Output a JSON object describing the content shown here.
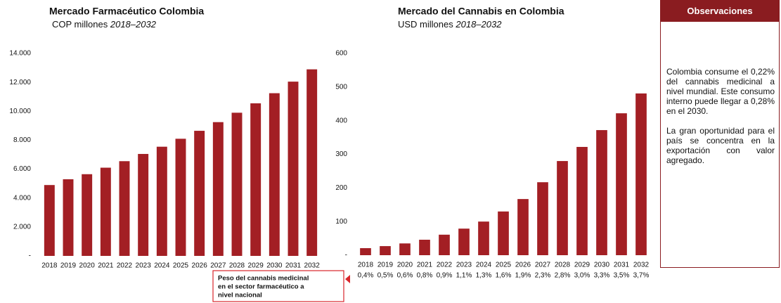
{
  "chart_data": [
    {
      "type": "bar",
      "title": "Mercado Farmacéutico Colombia",
      "subtitle": "COP millones",
      "period": "2018–2032",
      "categories": [
        "2018",
        "2019",
        "2020",
        "2021",
        "2022",
        "2023",
        "2024",
        "2025",
        "2026",
        "2027",
        "2028",
        "2029",
        "2030",
        "2031",
        "2032"
      ],
      "values": [
        4900,
        5300,
        5650,
        6100,
        6550,
        7050,
        7550,
        8100,
        8650,
        9250,
        9900,
        10550,
        11250,
        12050,
        12900
      ],
      "color": "#a31f24",
      "ylim": [
        0,
        14000
      ],
      "yticks": [
        {
          "value": 0,
          "label": "-"
        },
        {
          "value": 2000,
          "label": "2.000"
        },
        {
          "value": 4000,
          "label": "4.000"
        },
        {
          "value": 6000,
          "label": "6.000"
        },
        {
          "value": 8000,
          "label": "8.000"
        },
        {
          "value": 10000,
          "label": "10.000"
        },
        {
          "value": 12000,
          "label": "12.000"
        },
        {
          "value": 14000,
          "label": "14.000"
        }
      ]
    },
    {
      "type": "bar",
      "title": "Mercado del Cannabis en Colombia",
      "subtitle": "USD millones",
      "period": "2018–2032",
      "categories": [
        "2018",
        "2019",
        "2020",
        "2021",
        "2022",
        "2023",
        "2024",
        "2025",
        "2026",
        "2027",
        "2028",
        "2029",
        "2030",
        "2031",
        "2032"
      ],
      "values": [
        21,
        27,
        35,
        46,
        61,
        79,
        100,
        130,
        167,
        217,
        280,
        322,
        372,
        422,
        481
      ],
      "color": "#a31f24",
      "ylim": [
        0,
        600
      ],
      "yticks": [
        {
          "value": 0,
          "label": "-"
        },
        100,
        200,
        300,
        400,
        500,
        600
      ],
      "shares": [
        0.4,
        0.5,
        0.6,
        0.8,
        0.9,
        1.1,
        1.3,
        1.6,
        1.9,
        2.3,
        2.8,
        3.0,
        3.3,
        3.5,
        3.7
      ],
      "share_labels": [
        "0,4%",
        "0,5%",
        "0,6%",
        "0,8%",
        "0,9%",
        "1,1%",
        "1,3%",
        "1,6%",
        "1,9%",
        "2,3%",
        "2,8%",
        "3,0%",
        "3,3%",
        "3,5%",
        "3,7%"
      ],
      "annotation": [
        "Peso del cannabis medicinal",
        "en el sector farmacéutico a",
        "nivel nacional"
      ]
    }
  ],
  "observations": {
    "title": "Observaciones",
    "paragraphs": [
      "Colombia consume el 0,22% del cannabis medicinal a nivel mundial. Este consumo interno puede llegar a 0,28% en el 2030.",
      "La gran oportunidad para el país se concentra en la exportación con valor agregado."
    ]
  }
}
